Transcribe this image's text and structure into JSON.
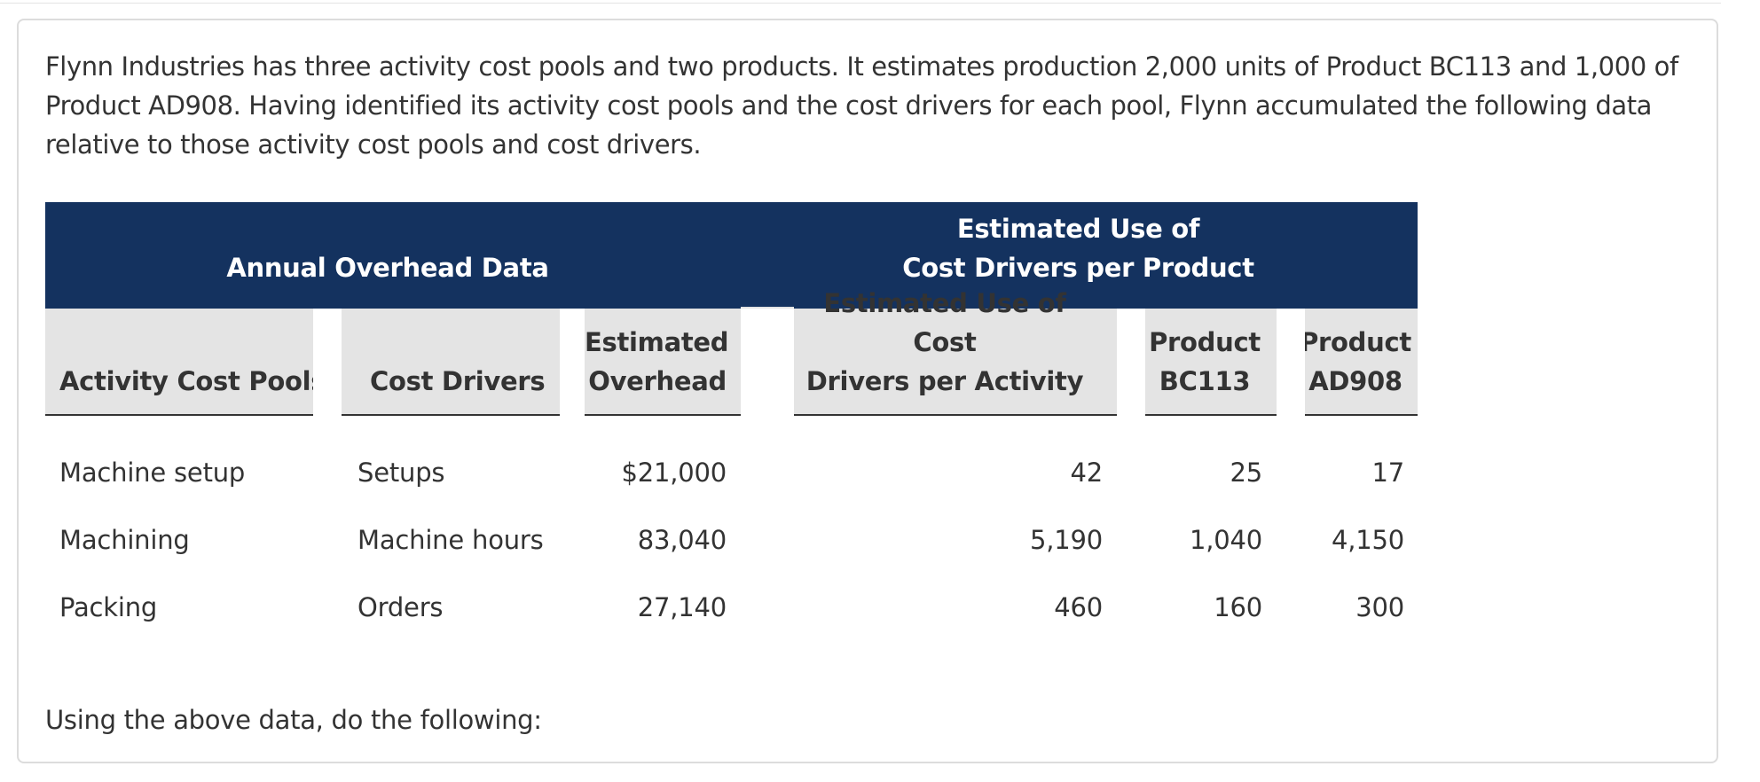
{
  "intro_text": "Flynn Industries has three activity cost pools and two products. It estimates production 2,000 units of Product BC113 and 1,000 of Product AD908. Having identified its activity cost pools and the cost drivers for each pool, Flynn accumulated the following data relative to those activity cost pools and cost drivers.",
  "table": {
    "group_left": "Annual Overhead Data",
    "group_right_line1": "Estimated Use of",
    "group_right_line2": "Cost Drivers per Product",
    "columns": {
      "pools": "Activity Cost Pools",
      "drivers": "Cost Drivers",
      "overhead_line1": "Estimated",
      "overhead_line2": "Overhead",
      "activity_line1": "Estimated Use of Cost",
      "activity_line2": "Drivers per Activity",
      "bc_line1": "Product",
      "bc_line2": "BC113",
      "ad_line1": "Product",
      "ad_line2": "AD908"
    },
    "rows": [
      {
        "pool": "Machine setup",
        "driver": "Setups",
        "overhead": "$21,000",
        "activity": "42",
        "bc113": "25",
        "ad908": "17"
      },
      {
        "pool": "Machining",
        "driver": "Machine hours",
        "overhead": "83,040",
        "activity": "5,190",
        "bc113": "1,040",
        "ad908": "4,150"
      },
      {
        "pool": "Packing",
        "driver": "Orders",
        "overhead": "27,140",
        "activity": "460",
        "bc113": "160",
        "ad908": "300"
      }
    ]
  },
  "footer_text": "Using the above data, do the following:"
}
